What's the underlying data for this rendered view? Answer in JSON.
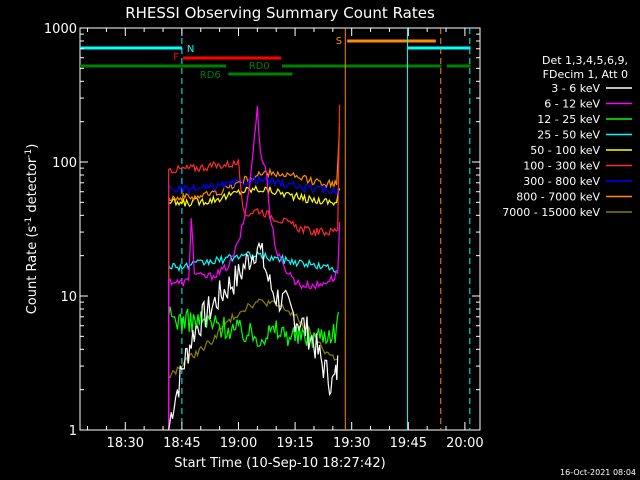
{
  "chart_data": {
    "type": "line",
    "title": "RHESSI Observing Summary Count Rates",
    "xlabel": "Start Time (10-Sep-10 18:27:42)",
    "ylabel_main": "Count Rate (s",
    "ylabel_sup1": "-1",
    "ylabel_mid": " detector",
    "ylabel_sup2": "-1",
    "ylabel_end": ")",
    "yscale": "log",
    "ylim": [
      1,
      1000
    ],
    "xlim_minutes": [
      18.0,
      124.0
    ],
    "x_ticks": [
      {
        "label": "18:30",
        "minutes": 30
      },
      {
        "label": "18:45",
        "minutes": 45
      },
      {
        "label": "19:00",
        "minutes": 60
      },
      {
        "label": "19:15",
        "minutes": 75
      },
      {
        "label": "19:30",
        "minutes": 90
      },
      {
        "label": "19:45",
        "minutes": 105
      },
      {
        "label": "20:00",
        "minutes": 120
      }
    ],
    "y_ticks": [
      {
        "label": "1",
        "value": 1
      },
      {
        "label": "10",
        "value": 10
      },
      {
        "label": "100",
        "value": 100
      },
      {
        "label": "1000",
        "value": 1000
      }
    ],
    "legend_header": [
      "Det 1,3,4,5,6,9,",
      "FDecim 1, Att 0"
    ],
    "footer": "16-Oct-2021 08:04",
    "series": [
      {
        "name": "3 - 6 keV",
        "color": "#ffffff",
        "x": [
          41.5,
          42.5,
          43.8,
          45.3,
          46.7,
          48.3,
          50,
          52.5,
          55,
          57.5,
          60,
          61.7,
          63.3,
          65,
          66.7,
          68.3,
          70,
          71.7,
          73.3,
          75,
          76,
          77.3,
          79,
          80.3,
          81.5,
          82.5,
          83.8,
          84.8,
          85.8,
          86.3
        ],
        "y": [
          1,
          1.5,
          2,
          3,
          4,
          5.5,
          6.5,
          8,
          10,
          12,
          14,
          17,
          20,
          24,
          18,
          12,
          10,
          9,
          8,
          7,
          6.5,
          6,
          5,
          4.3,
          3.5,
          3,
          2.5,
          2.2,
          2.5,
          3
        ]
      },
      {
        "name": "6 - 12 keV",
        "color": "#ff00ff",
        "x": [
          41.5,
          45,
          46.8,
          47.5,
          48.3,
          50,
          52.5,
          55,
          57.5,
          60,
          61.7,
          63.3,
          64.2,
          65,
          65.8,
          66.7,
          67.5,
          68.3,
          69.2,
          70,
          71.7,
          73.3,
          75,
          76.7,
          78.3,
          80,
          81.7,
          83.3,
          85,
          86.3,
          86.8
        ],
        "y": [
          13,
          12.5,
          13,
          40,
          15,
          14,
          14,
          15,
          17,
          25,
          40,
          80,
          150,
          250,
          120,
          100,
          80,
          40,
          30,
          22,
          17,
          15,
          13,
          12,
          12,
          12,
          12,
          13,
          13.5,
          15,
          35
        ]
      },
      {
        "name": "12 - 25 keV",
        "color": "#00ff00",
        "x": [
          41.5,
          45,
          50,
          55,
          60,
          65,
          70,
          75,
          80,
          86,
          86.5
        ],
        "y": [
          7,
          6.5,
          6.5,
          6,
          5.5,
          5,
          5.5,
          5,
          5,
          5.5,
          8
        ]
      },
      {
        "name": "25 - 50 keV",
        "color": "#00ffff",
        "x": [
          41.5,
          45,
          47.5,
          50,
          52.5,
          55,
          57.5,
          60,
          62.5,
          65,
          67.5,
          70,
          72.5,
          75,
          77.5,
          80,
          82.5,
          86
        ],
        "y": [
          17,
          16.5,
          17,
          17.5,
          18,
          18.5,
          19,
          20,
          20,
          20,
          19.5,
          19,
          18.5,
          18,
          17.5,
          17,
          16.5,
          16
        ]
      },
      {
        "name": "50 - 100 keV",
        "color": "#ffff00",
        "x": [
          41.5,
          45,
          47.5,
          50,
          52.5,
          55,
          57.5,
          60,
          62.5,
          65,
          67.5,
          70,
          72.5,
          75,
          77.5,
          80,
          82.5,
          86,
          86.8
        ],
        "y": [
          50,
          49,
          50,
          51,
          52,
          54,
          56,
          60,
          62,
          63,
          62,
          60,
          58,
          55,
          53,
          52,
          51,
          50,
          65
        ]
      },
      {
        "name": "100 - 300 keV",
        "color": "#ff2a2a",
        "x": [
          41.5,
          44,
          46,
          47,
          48.5,
          50,
          52.5,
          55,
          57.5,
          60,
          61.5,
          63.3,
          65,
          66.7,
          68.3,
          70,
          72,
          74,
          76,
          78,
          80,
          82,
          84,
          85.5,
          86.3,
          86.8
        ],
        "y": [
          88,
          88,
          89,
          90,
          90,
          91,
          93,
          94,
          96,
          98,
          40,
          42,
          44,
          42,
          40,
          38,
          36,
          34,
          32,
          31,
          30,
          30,
          30,
          31,
          32,
          270
        ]
      },
      {
        "name": "300 - 800 keV",
        "color": "#0000ff",
        "x": [
          41.5,
          45,
          50,
          55,
          57.5,
          60,
          62.5,
          65,
          67.5,
          70,
          72.5,
          75,
          77.5,
          80,
          82.5,
          86,
          86.8
        ],
        "y": [
          63,
          62,
          63,
          66,
          68,
          70,
          72,
          74,
          72,
          70,
          68,
          66,
          64,
          63,
          62,
          61,
          62
        ]
      },
      {
        "name": "800 - 7000 keV",
        "color": "#ff8c00",
        "x": [
          41.5,
          45,
          50,
          55,
          57.5,
          60,
          62.5,
          65,
          67.5,
          70,
          72.5,
          75,
          77.5,
          80,
          82.5,
          86,
          86.8
        ],
        "y": [
          55,
          54,
          56,
          60,
          65,
          70,
          75,
          80,
          82,
          82,
          80,
          77,
          74,
          72,
          70,
          68,
          190
        ]
      },
      {
        "name": "7000 - 15000 keV",
        "color": "#8b8000",
        "x": [
          41.5,
          43,
          45,
          47.5,
          50,
          52.5,
          55,
          57.5,
          60,
          62.5,
          65,
          67.5,
          70,
          72.5,
          75,
          77.5,
          80,
          82.5,
          85,
          86.3
        ],
        "y": [
          2.5,
          2.7,
          3,
          3.5,
          4,
          4.5,
          5.5,
          6.5,
          7.5,
          8.5,
          9,
          9,
          8.5,
          8,
          7,
          6,
          5,
          4,
          3.5,
          3.5
        ]
      }
    ],
    "flag_bars": [
      {
        "label": "N",
        "color": "#00ffff",
        "row": "N",
        "segments": [
          [
            18.0,
            45.0
          ],
          [
            104.8,
            121.5
          ]
        ]
      },
      {
        "label": "F",
        "color": "#ff0000",
        "row": "F",
        "segments": [
          [
            45.3,
            71.3
          ]
        ]
      },
      {
        "label": "S",
        "color": "#ff8c00",
        "row": "S",
        "segments": [
          [
            88.8,
            112.3
          ]
        ]
      },
      {
        "label": "RD0",
        "color": "#008000",
        "row": "RD0",
        "segments": [
          [
            18.0,
            56.7
          ],
          [
            71.5,
            113.8
          ],
          [
            115.2,
            121.5
          ]
        ]
      },
      {
        "label": "RD6",
        "color": "#008000",
        "row": "RD6",
        "segments": [
          [
            57.3,
            74.3
          ]
        ]
      }
    ],
    "vlines": [
      {
        "minutes": 45.0,
        "color": "#00ffff",
        "style": "dashed"
      },
      {
        "minutes": 88.3,
        "color": "#ff8c00",
        "style": "solid"
      },
      {
        "minutes": 104.8,
        "color": "#00ffff",
        "style": "solid"
      },
      {
        "minutes": 113.6,
        "color": "#ff8c00",
        "style": "dashed"
      },
      {
        "minutes": 121.3,
        "color": "#00ffff",
        "style": "dashed"
      }
    ]
  }
}
